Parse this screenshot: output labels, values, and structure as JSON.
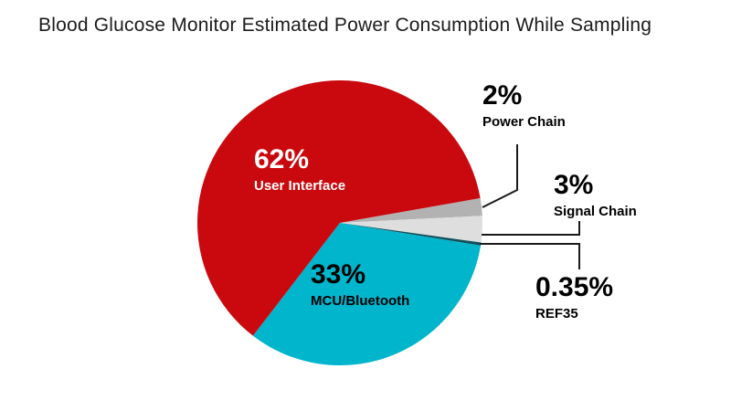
{
  "chart_data": {
    "type": "pie",
    "title": "Blood Glucose Monitor Estimated Power Consumption While Sampling",
    "legend_position": "none",
    "background": "#ffffff",
    "start_angle_deg": 10,
    "direction": "clockwise",
    "slices": [
      {
        "label": "Power Chain",
        "pct": 2,
        "pct_label": "2%",
        "color": "#b2b2b2",
        "label_placement": "outside",
        "text_color": "#000000"
      },
      {
        "label": "Signal Chain",
        "pct": 3,
        "pct_label": "3%",
        "color": "#dedede",
        "label_placement": "outside",
        "text_color": "#000000"
      },
      {
        "label": "REF35",
        "pct": 0.35,
        "pct_label": "0.35%",
        "color": "#12505d",
        "label_placement": "outside",
        "text_color": "#000000"
      },
      {
        "label": "MCU/Bluetooth",
        "pct": 33,
        "pct_label": "33%",
        "color": "#00b5cc",
        "label_placement": "inside",
        "text_color": "#000000"
      },
      {
        "label": "User Interface",
        "pct": 62,
        "pct_label": "62%",
        "color": "#c9090d",
        "label_placement": "inside",
        "text_color": "#ffffff"
      }
    ],
    "leader_line_color": "#1a1a1a"
  }
}
